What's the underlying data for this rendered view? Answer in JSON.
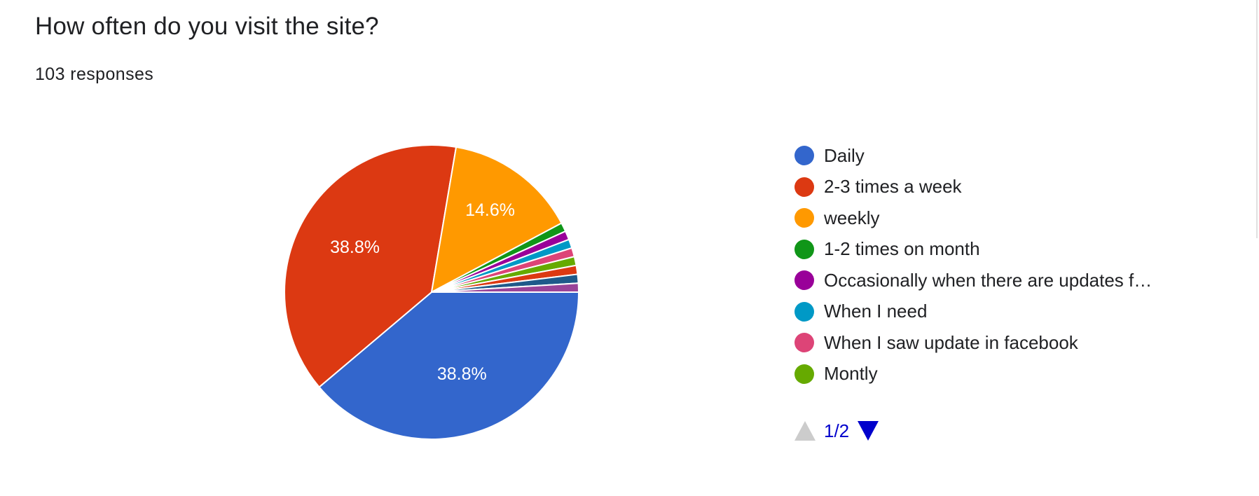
{
  "question": {
    "title": "How often do you visit the site?",
    "responses": "103 responses"
  },
  "chart_data": {
    "type": "pie",
    "title": "How often do you visit the site?",
    "categories": [
      "Daily",
      "2-3 times a week",
      "weekly",
      "1-2 times on month",
      "Occasionally when there are updates f…",
      "When I need",
      "When I saw update in facebook",
      "Montly"
    ],
    "values": [
      40,
      40,
      15,
      1,
      1,
      1,
      1,
      1
    ],
    "hidden_slices": [
      {
        "value": 1,
        "color": "#dc3912"
      },
      {
        "value": 1,
        "color": "#1f5a8a"
      },
      {
        "value": 1,
        "color": "#994499"
      }
    ],
    "total": 103,
    "slice_labels": [
      "38.8%",
      "38.8%",
      "14.6%",
      "",
      "",
      "",
      "",
      ""
    ],
    "colors": [
      "#3366cc",
      "#dc3912",
      "#ff9900",
      "#109618",
      "#990099",
      "#0099c6",
      "#dd4477",
      "#66aa00"
    ],
    "legend_position": "right",
    "start_angle_deg": 90,
    "direction": "clockwise"
  },
  "pager": {
    "text": "1/2"
  }
}
